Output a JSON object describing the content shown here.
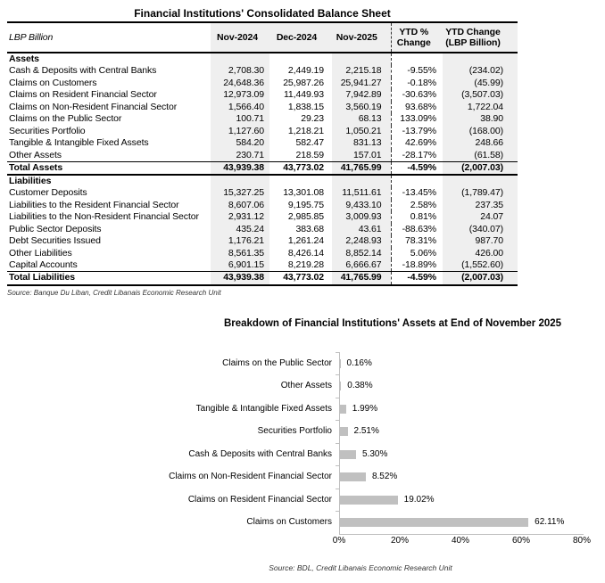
{
  "colors": {
    "column_shade": "#efefef",
    "bar_fill": "#c0c0c0",
    "axis_line": "#bfbfbf",
    "text": "#000000"
  },
  "chart_data": [
    {
      "type": "table",
      "title": "Financial Institutions' Consolidated Balance Sheet",
      "unit_label": "LBP Billion",
      "columns": [
        "Nov-2024",
        "Dec-2024",
        "Nov-2025",
        "YTD %\nChange",
        "YTD Change\n(LBP Billion)"
      ],
      "sections": [
        {
          "header": "Assets",
          "rows": [
            {
              "label": "Cash & Deposits with Central Banks",
              "values": [
                "2,708.30",
                "2,449.19",
                "2,215.18",
                "-9.55%",
                "(234.02)"
              ]
            },
            {
              "label": "Claims on Customers",
              "values": [
                "24,648.36",
                "25,987.26",
                "25,941.27",
                "-0.18%",
                "(45.99)"
              ]
            },
            {
              "label": "Claims on Resident Financial Sector",
              "values": [
                "12,973.09",
                "11,449.93",
                "7,942.89",
                "-30.63%",
                "(3,507.03)"
              ]
            },
            {
              "label": "Claims on Non-Resident Financial Sector",
              "values": [
                "1,566.40",
                "1,838.15",
                "3,560.19",
                "93.68%",
                "1,722.04"
              ]
            },
            {
              "label": "Claims on the Public Sector",
              "values": [
                "100.71",
                "29.23",
                "68.13",
                "133.09%",
                "38.90"
              ]
            },
            {
              "label": "Securities Portfolio",
              "values": [
                "1,127.60",
                "1,218.21",
                "1,050.21",
                "-13.79%",
                "(168.00)"
              ]
            },
            {
              "label": "Tangible & Intangible Fixed Assets",
              "values": [
                "584.20",
                "582.47",
                "831.13",
                "42.69%",
                "248.66"
              ]
            },
            {
              "label": "Other Assets",
              "values": [
                "230.71",
                "218.59",
                "157.01",
                "-28.17%",
                "(61.58)"
              ]
            }
          ],
          "total": {
            "label": "Total Assets",
            "values": [
              "43,939.38",
              "43,773.02",
              "41,765.99",
              "-4.59%",
              "(2,007.03)"
            ]
          }
        },
        {
          "header": "Liabilities",
          "rows": [
            {
              "label": "Customer Deposits",
              "values": [
                "15,327.25",
                "13,301.08",
                "11,511.61",
                "-13.45%",
                "(1,789.47)"
              ]
            },
            {
              "label": "Liabilities to the Resident Financial Sector",
              "values": [
                "8,607.06",
                "9,195.75",
                "9,433.10",
                "2.58%",
                "237.35"
              ]
            },
            {
              "label": "Liabilities to the Non-Resident Financial Sector",
              "values": [
                "2,931.12",
                "2,985.85",
                "3,009.93",
                "0.81%",
                "24.07"
              ]
            },
            {
              "label": "Public Sector Deposits",
              "values": [
                "435.24",
                "383.68",
                "43.61",
                "-88.63%",
                "(340.07)"
              ]
            },
            {
              "label": "Debt Securities Issued",
              "values": [
                "1,176.21",
                "1,261.24",
                "2,248.93",
                "78.31%",
                "987.70"
              ]
            },
            {
              "label": "Other Liabilities",
              "values": [
                "8,561.35",
                "8,426.14",
                "8,852.14",
                "5.06%",
                "426.00"
              ]
            },
            {
              "label": "Capital Accounts",
              "values": [
                "6,901.15",
                "8,219.28",
                "6,666.67",
                "-18.89%",
                "(1,552.60)"
              ]
            }
          ],
          "total": {
            "label": "Total Liabilities",
            "values": [
              "43,939.38",
              "43,773.02",
              "41,765.99",
              "-4.59%",
              "(2,007.03)"
            ]
          }
        }
      ],
      "source": "Source: Banque Du Liban, Credit Libanais Economic Research Unit"
    },
    {
      "type": "bar",
      "orientation": "horizontal",
      "title": "Breakdown of Financial Institutions' Assets at End of November 2025",
      "categories": [
        "Claims on the Public Sector",
        "Other Assets",
        "Tangible & Intangible Fixed Assets",
        "Securities Portfolio",
        "Cash & Deposits with Central Banks",
        "Claims on Non-Resident Financial Sector",
        "Claims on Resident Financial Sector",
        "Claims on Customers"
      ],
      "values": [
        0.16,
        0.38,
        1.99,
        2.51,
        5.3,
        8.52,
        19.02,
        62.11
      ],
      "data_labels": [
        "0.16%",
        "0.38%",
        "1.99%",
        "2.51%",
        "5.30%",
        "8.52%",
        "19.02%",
        "62.11%"
      ],
      "xlim": [
        0,
        80
      ],
      "xticks": [
        "0%",
        "20%",
        "40%",
        "60%",
        "80%"
      ],
      "grid": false,
      "legend": "none",
      "bar_color": "#c0c0c0",
      "source": "Source: BDL, Credit Libanais Economic Research Unit"
    }
  ]
}
